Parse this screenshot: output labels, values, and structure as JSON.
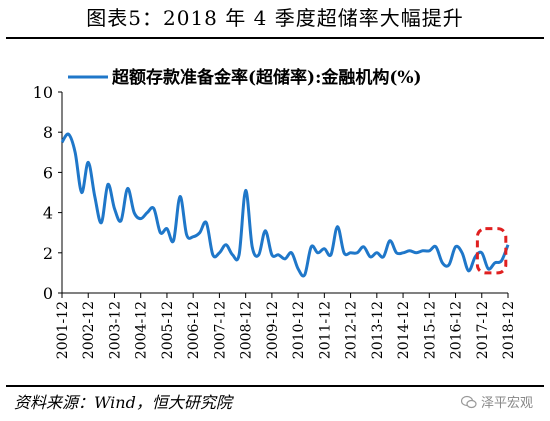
{
  "title": "图表5：2018 年 4 季度超储率大幅提升",
  "source": "资料来源：Wind，恒大研究院",
  "watermark": "泽平宏观",
  "colors": {
    "line": "#1f77c9",
    "highlight": "#e02020",
    "axis": "#000000"
  },
  "chart_data": {
    "type": "line",
    "title": "",
    "ylim": [
      0,
      10
    ],
    "yticks": [
      0,
      2,
      4,
      6,
      8,
      10
    ],
    "xlim": [
      "2001-12",
      "2018-12"
    ],
    "x_tick_labels": [
      "2001-12",
      "2002-12",
      "2003-12",
      "2004-12",
      "2005-12",
      "2006-12",
      "2007-12",
      "2008-12",
      "2009-12",
      "2010-12",
      "2011-12",
      "2012-12",
      "2013-12",
      "2014-12",
      "2015-12",
      "2016-12",
      "2017-12",
      "2018-12"
    ],
    "legend_position": "top",
    "grid": false,
    "highlight_region": {
      "x_from": "2017-10",
      "x_to": "2018-11",
      "y_from": 1.0,
      "y_to": 3.2
    },
    "series": [
      {
        "name": "超额存款准备金率(超储率):金融机构(%)",
        "x": [
          "2001-12",
          "2002-03",
          "2002-06",
          "2002-09",
          "2002-12",
          "2003-03",
          "2003-06",
          "2003-09",
          "2003-12",
          "2004-03",
          "2004-06",
          "2004-09",
          "2004-12",
          "2005-03",
          "2005-06",
          "2005-09",
          "2005-12",
          "2006-03",
          "2006-06",
          "2006-09",
          "2006-12",
          "2007-03",
          "2007-06",
          "2007-09",
          "2007-12",
          "2008-03",
          "2008-06",
          "2008-09",
          "2008-12",
          "2009-03",
          "2009-06",
          "2009-09",
          "2009-12",
          "2010-03",
          "2010-06",
          "2010-09",
          "2010-12",
          "2011-03",
          "2011-06",
          "2011-09",
          "2011-12",
          "2012-03",
          "2012-06",
          "2012-09",
          "2012-12",
          "2013-03",
          "2013-06",
          "2013-09",
          "2013-12",
          "2014-03",
          "2014-06",
          "2014-09",
          "2014-12",
          "2015-03",
          "2015-06",
          "2015-09",
          "2015-12",
          "2016-03",
          "2016-06",
          "2016-09",
          "2016-12",
          "2017-03",
          "2017-06",
          "2017-09",
          "2017-12",
          "2018-03",
          "2018-06",
          "2018-09",
          "2018-12"
        ],
        "values": [
          7.5,
          7.9,
          7.0,
          5.0,
          6.5,
          4.8,
          3.5,
          5.4,
          4.2,
          3.6,
          5.2,
          4.0,
          3.7,
          4.0,
          4.2,
          3.0,
          3.2,
          2.6,
          4.8,
          2.9,
          2.8,
          3.0,
          3.5,
          1.9,
          2.0,
          2.4,
          1.9,
          1.9,
          5.1,
          2.3,
          1.9,
          3.1,
          1.9,
          1.9,
          1.7,
          2.0,
          1.2,
          0.9,
          2.3,
          2.0,
          2.2,
          1.9,
          3.3,
          2.0,
          2.0,
          2.0,
          2.3,
          1.8,
          2.0,
          1.8,
          2.6,
          2.0,
          2.0,
          2.1,
          2.0,
          2.1,
          2.1,
          2.3,
          1.5,
          1.4,
          2.3,
          2.0,
          1.1,
          1.8,
          2.0,
          1.2,
          1.5,
          1.6,
          2.4
        ]
      }
    ]
  }
}
